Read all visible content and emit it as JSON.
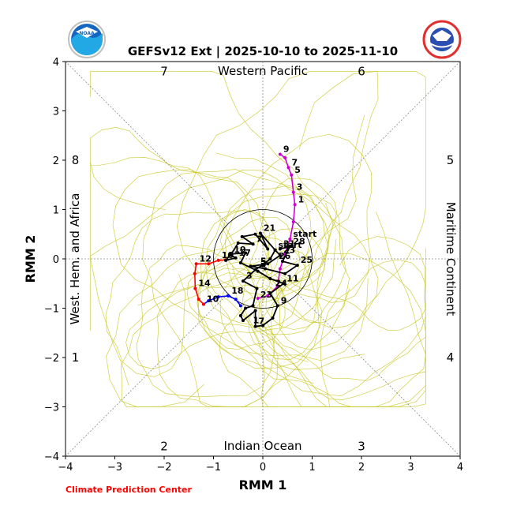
{
  "chart_data": {
    "type": "line",
    "title": "GEFSv12 Ext | 2025-10-10 to 2025-11-10",
    "xlabel": "RMM 1",
    "ylabel": "RMM 2",
    "xlim": [
      -4,
      4
    ],
    "ylim": [
      -4,
      4
    ],
    "xticks": [
      "−4",
      "−3",
      "−2",
      "−1",
      "0",
      "1",
      "2",
      "3",
      "4"
    ],
    "yticks": [
      "−4",
      "−3",
      "−2",
      "−1",
      "0",
      "1",
      "2",
      "3",
      "4"
    ],
    "phase_numbers": [
      {
        "text": "7",
        "x": -2.0,
        "y": 3.8
      },
      {
        "text": "6",
        "x": 2.0,
        "y": 3.8
      },
      {
        "text": "8",
        "x": -3.8,
        "y": 2.0
      },
      {
        "text": "5",
        "x": 3.8,
        "y": 2.0
      },
      {
        "text": "1",
        "x": -3.8,
        "y": -2.0
      },
      {
        "text": "4",
        "x": 3.8,
        "y": -2.0
      },
      {
        "text": "2",
        "x": -2.0,
        "y": -3.8
      },
      {
        "text": "3",
        "x": 2.0,
        "y": -3.8
      }
    ],
    "regions": {
      "top": "Western Pacific",
      "bottom": "Indian Ocean",
      "left": "West. Hem. and Africa",
      "right": "Maritime Continent"
    },
    "unit_circle_radius": 1,
    "observed": {
      "name": "",
      "color": "#000000",
      "points": [
        {
          "x": 0.25,
          "y": 0.18,
          "label": "start"
        },
        {
          "x": 0.15,
          "y": 0.0
        },
        {
          "x": 0.0,
          "y": -0.12
        },
        {
          "x": -0.15,
          "y": -0.22
        },
        {
          "x": -0.4,
          "y": -0.45,
          "label": "3"
        },
        {
          "x": -0.12,
          "y": -0.6
        },
        {
          "x": -0.2,
          "y": -0.95
        },
        {
          "x": -0.35,
          "y": -1.0
        },
        {
          "x": -0.45,
          "y": -1.15
        },
        {
          "x": -0.4,
          "y": -1.25
        },
        {
          "x": -0.15,
          "y": -1.05
        },
        {
          "x": -0.15,
          "y": -1.37,
          "label": "7"
        },
        {
          "x": 0.0,
          "y": -1.35
        },
        {
          "x": 0.2,
          "y": -1.2
        },
        {
          "x": 0.3,
          "y": -0.95,
          "label": "9"
        },
        {
          "x": 0.15,
          "y": -0.7
        },
        {
          "x": 0.42,
          "y": -0.5,
          "label": "11"
        },
        {
          "x": 0.15,
          "y": -0.4
        },
        {
          "x": -0.1,
          "y": -0.25
        },
        {
          "x": -0.45,
          "y": -0.08
        },
        {
          "x": -0.35,
          "y": 0.12
        },
        {
          "x": -0.65,
          "y": 0.1
        },
        {
          "x": -0.75,
          "y": -0.03
        },
        {
          "x": -0.55,
          "y": 0.02,
          "label": "17"
        },
        {
          "x": -0.65,
          "y": 0.08,
          "label": "19"
        },
        {
          "x": -0.5,
          "y": 0.32
        },
        {
          "x": -0.2,
          "y": 0.3,
          "label": "7"
        },
        {
          "x": -0.42,
          "y": 0.45
        },
        {
          "x": -0.15,
          "y": 0.5
        },
        {
          "x": 0.1,
          "y": 0.2
        },
        {
          "x": -0.05,
          "y": 0.52,
          "label": "21"
        },
        {
          "x": 0.25,
          "y": 0.18
        },
        {
          "x": 0.35,
          "y": 0.07,
          "label": "23"
        },
        {
          "x": 0.1,
          "y": -0.1
        },
        {
          "x": -0.25,
          "y": -0.15
        },
        {
          "x": 0.05,
          "y": -0.2
        },
        {
          "x": 0.45,
          "y": -0.3
        },
        {
          "x": 0.7,
          "y": -0.13,
          "label": "25"
        },
        {
          "x": 0.4,
          "y": -0.05
        },
        {
          "x": 0.55,
          "y": 0.25,
          "label": "28"
        },
        {
          "x": 0.35,
          "y": 0.2,
          "label": "31"
        }
      ],
      "extra_labels": [
        {
          "text": "3",
          "x": -0.05,
          "y": -0.17
        },
        {
          "text": "5",
          "x": -0.05,
          "y": -0.1
        },
        {
          "text": "1",
          "x": -0.2,
          "y": -1.3
        },
        {
          "text": "26",
          "x": 0.32,
          "y": 0.0
        },
        {
          "text": "24",
          "x": 0.25,
          "y": -0.55
        },
        {
          "text": "23",
          "x": -0.05,
          "y": -0.78
        }
      ]
    },
    "forecast_segments": [
      {
        "color": "#0000ff",
        "points": [
          {
            "x": -0.45,
            "y": -0.95
          },
          {
            "x": -0.55,
            "y": -0.82
          },
          {
            "x": -0.7,
            "y": -0.75,
            "label": "18"
          },
          {
            "x": -0.9,
            "y": -0.77
          },
          {
            "x": -1.1,
            "y": -0.85
          },
          {
            "x": -1.2,
            "y": -0.92,
            "label": "10"
          }
        ]
      },
      {
        "color": "#ff0000",
        "points": [
          {
            "x": -1.2,
            "y": -0.92
          },
          {
            "x": -1.3,
            "y": -0.82
          },
          {
            "x": -1.37,
            "y": -0.6,
            "label": "14"
          },
          {
            "x": -1.38,
            "y": -0.3
          },
          {
            "x": -1.35,
            "y": -0.1,
            "label": "12"
          },
          {
            "x": -1.1,
            "y": -0.1
          },
          {
            "x": -0.9,
            "y": -0.03,
            "label": "10"
          },
          {
            "x": -0.75,
            "y": -0.02
          }
        ]
      },
      {
        "color": "#cc00cc",
        "points": [
          {
            "x": -0.1,
            "y": -0.8
          },
          {
            "x": 0.1,
            "y": -0.75
          },
          {
            "x": 0.3,
            "y": -0.55
          },
          {
            "x": 0.35,
            "y": -0.2
          },
          {
            "x": 0.45,
            "y": 0.1
          },
          {
            "x": 0.55,
            "y": 0.4,
            "label": "start"
          },
          {
            "x": 0.62,
            "y": 0.75
          },
          {
            "x": 0.65,
            "y": 1.1,
            "label": "1"
          },
          {
            "x": 0.62,
            "y": 1.35,
            "label": "3"
          },
          {
            "x": 0.58,
            "y": 1.7,
            "label": "5"
          },
          {
            "x": 0.52,
            "y": 1.85,
            "label": "7"
          },
          {
            "x": 0.45,
            "y": 2.05
          },
          {
            "x": 0.35,
            "y": 2.12,
            "label": "9"
          }
        ]
      }
    ],
    "ensemble_color": "#c8c828",
    "grid": "diagonal phase boundaries (dotted)"
  },
  "credit": "Climate Prediction Center",
  "logos": {
    "left": "NOAA",
    "right": "NATIONAL WEATHER SERVICE"
  }
}
